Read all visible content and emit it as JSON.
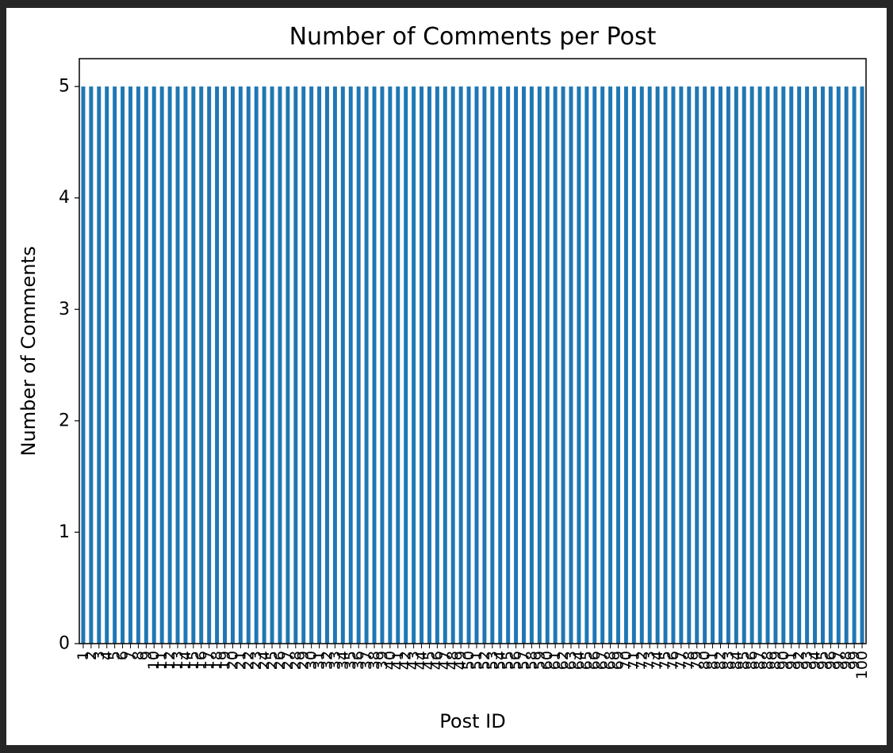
{
  "chart_data": {
    "type": "bar",
    "title": "Number of Comments per Post",
    "xlabel": "Post ID",
    "ylabel": "Number of Comments",
    "categories": [
      "1",
      "2",
      "3",
      "4",
      "5",
      "6",
      "7",
      "8",
      "9",
      "10",
      "11",
      "12",
      "13",
      "14",
      "15",
      "16",
      "17",
      "18",
      "19",
      "20",
      "21",
      "22",
      "23",
      "24",
      "25",
      "26",
      "27",
      "28",
      "29",
      "30",
      "31",
      "32",
      "33",
      "34",
      "35",
      "36",
      "37",
      "38",
      "39",
      "40",
      "41",
      "42",
      "43",
      "44",
      "45",
      "46",
      "47",
      "48",
      "49",
      "50",
      "51",
      "52",
      "53",
      "54",
      "55",
      "56",
      "57",
      "58",
      "59",
      "60",
      "61",
      "62",
      "63",
      "64",
      "65",
      "66",
      "67",
      "68",
      "69",
      "70",
      "71",
      "72",
      "73",
      "74",
      "75",
      "76",
      "77",
      "78",
      "79",
      "80",
      "81",
      "82",
      "83",
      "84",
      "85",
      "86",
      "87",
      "88",
      "89",
      "90",
      "91",
      "92",
      "93",
      "94",
      "95",
      "96",
      "97",
      "98",
      "99",
      "100"
    ],
    "values": [
      5,
      5,
      5,
      5,
      5,
      5,
      5,
      5,
      5,
      5,
      5,
      5,
      5,
      5,
      5,
      5,
      5,
      5,
      5,
      5,
      5,
      5,
      5,
      5,
      5,
      5,
      5,
      5,
      5,
      5,
      5,
      5,
      5,
      5,
      5,
      5,
      5,
      5,
      5,
      5,
      5,
      5,
      5,
      5,
      5,
      5,
      5,
      5,
      5,
      5,
      5,
      5,
      5,
      5,
      5,
      5,
      5,
      5,
      5,
      5,
      5,
      5,
      5,
      5,
      5,
      5,
      5,
      5,
      5,
      5,
      5,
      5,
      5,
      5,
      5,
      5,
      5,
      5,
      5,
      5,
      5,
      5,
      5,
      5,
      5,
      5,
      5,
      5,
      5,
      5,
      5,
      5,
      5,
      5,
      5,
      5,
      5,
      5,
      5,
      5
    ],
    "yticks": [
      "0",
      "1",
      "2",
      "3",
      "4",
      "5"
    ],
    "ylim": [
      0,
      5.25
    ],
    "bar_color": "#1f77b4",
    "grid": false,
    "legend": false
  }
}
